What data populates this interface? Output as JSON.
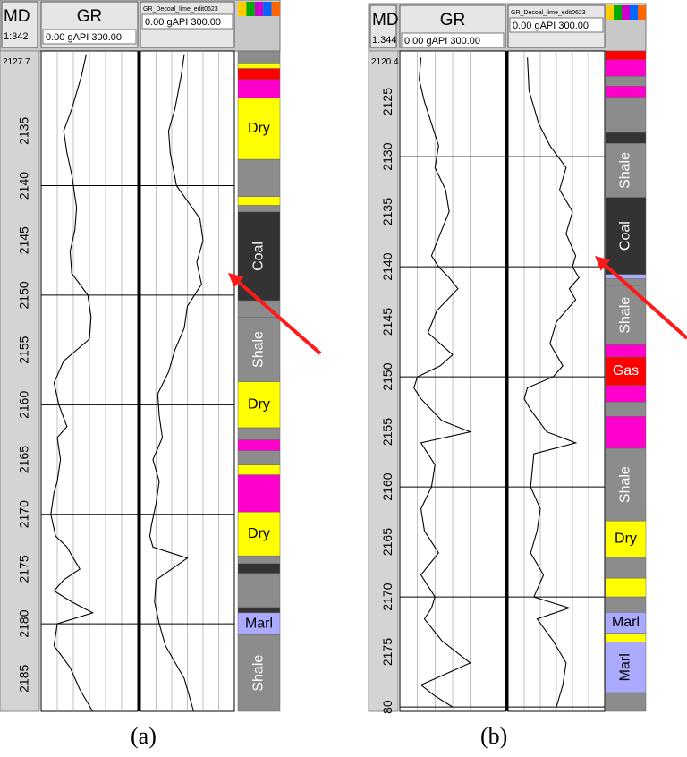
{
  "panels": [
    {
      "caption": "(a)",
      "header": {
        "md_title": "MD",
        "md_scale": "1:342",
        "gr_title": "GR",
        "gr_scale": "0.00 gAPI 300.00",
        "gr2_title": "GR_Decoal_lime_edit0623",
        "gr2_scale": "0.00 gAPI 300.00",
        "lith_icon": "lithology-column-icon"
      },
      "depth_top_label": "2127.7",
      "depth_ticks": [
        "2135",
        "2140",
        "2145",
        "2150",
        "2155",
        "2160",
        "2165",
        "2170",
        "2175",
        "2180",
        "2185"
      ],
      "lith_labels": [
        "Dry",
        "Coal",
        "Shale",
        "Dry",
        "Dry",
        "Marl",
        "Shale"
      ],
      "arrow": "red arrow pointing at coal interval",
      "colors": {
        "shale": "#8c8c8c",
        "coal": "#333333",
        "dry": "#ffff00",
        "marl": "#aaaaff",
        "lime": "#ff00cc",
        "gas": "#ff0000"
      }
    },
    {
      "caption": "(b)",
      "header": {
        "md_title": "MD",
        "md_scale": "1:344",
        "gr_title": "GR",
        "gr_scale": "0.00 gAPI 300.00",
        "gr2_title": "GR_Decoal_lime_edit0623",
        "gr2_scale": "0.00 gAPI 300.00",
        "lith_icon": "lithology-column-icon"
      },
      "depth_top_label": "2120.4",
      "depth_ticks": [
        "2125",
        "2130",
        "2135",
        "2140",
        "2145",
        "2150",
        "2155",
        "2160",
        "2165",
        "2170",
        "2175",
        "80"
      ],
      "lith_labels": [
        "Shale",
        "Coal",
        "Shale",
        "Gas",
        "Shale",
        "Dry",
        "Marl",
        "Marl"
      ],
      "arrow": "red arrow pointing at coal interval"
    }
  ],
  "chart_data": [
    {
      "type": "line",
      "panel": "a",
      "depth_range": [
        2127.7,
        2188
      ],
      "x_range": [
        0,
        300
      ],
      "x_unit": "gAPI",
      "lithology_intervals": [
        {
          "top": 2127.7,
          "base": 2128.8,
          "lith": "shale"
        },
        {
          "top": 2128.8,
          "base": 2129.3,
          "lith": "dry"
        },
        {
          "top": 2129.3,
          "base": 2130.3,
          "lith": "gas"
        },
        {
          "top": 2130.3,
          "base": 2132.0,
          "lith": "lime"
        },
        {
          "top": 2132.0,
          "base": 2137.6,
          "lith": "dry",
          "label": "Dry"
        },
        {
          "top": 2137.6,
          "base": 2141.0,
          "lith": "shale"
        },
        {
          "top": 2141.0,
          "base": 2141.8,
          "lith": "dry"
        },
        {
          "top": 2141.8,
          "base": 2142.4,
          "lith": "shale"
        },
        {
          "top": 2142.4,
          "base": 2150.5,
          "lith": "coal",
          "label": "Coal"
        },
        {
          "top": 2150.5,
          "base": 2152.0,
          "lith": "shale"
        },
        {
          "top": 2152.0,
          "base": 2157.9,
          "lith": "shale",
          "label": "Shale"
        },
        {
          "top": 2157.9,
          "base": 2162.1,
          "lith": "dry",
          "label": "Dry"
        },
        {
          "top": 2162.1,
          "base": 2163.2,
          "lith": "shale"
        },
        {
          "top": 2163.2,
          "base": 2164.2,
          "lith": "lime"
        },
        {
          "top": 2164.2,
          "base": 2165.5,
          "lith": "shale"
        },
        {
          "top": 2165.5,
          "base": 2166.4,
          "lith": "dry"
        },
        {
          "top": 2166.4,
          "base": 2169.8,
          "lith": "lime"
        },
        {
          "top": 2169.8,
          "base": 2173.8,
          "lith": "dry",
          "label": "Dry"
        },
        {
          "top": 2173.8,
          "base": 2174.5,
          "lith": "shale"
        },
        {
          "top": 2174.5,
          "base": 2175.4,
          "lith": "coal"
        },
        {
          "top": 2175.4,
          "base": 2178.5,
          "lith": "shale"
        },
        {
          "top": 2178.5,
          "base": 2179.0,
          "lith": "coal"
        },
        {
          "top": 2179.0,
          "base": 2181.0,
          "lith": "marl",
          "label": "Marl"
        },
        {
          "top": 2181.0,
          "base": 2188.0,
          "lith": "shale",
          "label": "Shale"
        }
      ],
      "series": [
        {
          "x": [
            140,
            125,
            95,
            70,
            80,
            95,
            110,
            105,
            90,
            95,
            145,
            155,
            150,
            70,
            40,
            55,
            80,
            50,
            60,
            50,
            40,
            30,
            45,
            80,
            100,
            120,
            70,
            40,
            95,
            160,
            50,
            40,
            90,
            120,
            160
          ],
          "depth": [
            2128,
            2130,
            2133,
            2135,
            2137,
            2139,
            2142,
            2144,
            2146,
            2148,
            2150,
            2152,
            2154,
            2156,
            2158,
            2160,
            2162,
            2163,
            2165,
            2167,
            2168,
            2170,
            2172,
            2173,
            2174,
            2175,
            2176,
            2177,
            2178,
            2179,
            2180,
            2182,
            2184,
            2186,
            2188
          ]
        },
        {
          "x": [
            140,
            130,
            110,
            90,
            95,
            115,
            190,
            200,
            180,
            195,
            150,
            140,
            110,
            90,
            55,
            60,
            70,
            40,
            60,
            50,
            35,
            30,
            40,
            150,
            50,
            45,
            60,
            80,
            140,
            170
          ],
          "depth": [
            2128,
            2130,
            2133,
            2135,
            2137,
            2140,
            2143,
            2145,
            2147,
            2149,
            2151,
            2153,
            2155,
            2157,
            2159,
            2161,
            2163,
            2165,
            2167,
            2169,
            2171,
            2172,
            2173,
            2174,
            2176,
            2178,
            2180,
            2182,
            2185,
            2188
          ]
        }
      ]
    },
    {
      "type": "line",
      "panel": "b",
      "depth_range": [
        2120.4,
        2180.4
      ],
      "x_range": [
        0,
        300
      ],
      "x_unit": "gAPI",
      "lithology_intervals": [
        {
          "top": 2120.4,
          "base": 2121.2,
          "lith": "gas"
        },
        {
          "top": 2121.2,
          "base": 2122.7,
          "lith": "lime"
        },
        {
          "top": 2122.7,
          "base": 2123.6,
          "lith": "shale"
        },
        {
          "top": 2123.6,
          "base": 2124.6,
          "lith": "lime"
        },
        {
          "top": 2124.6,
          "base": 2127.8,
          "lith": "shale"
        },
        {
          "top": 2127.8,
          "base": 2128.8,
          "lith": "coal"
        },
        {
          "top": 2128.8,
          "base": 2133.7,
          "lith": "shale",
          "label": "Shale"
        },
        {
          "top": 2133.7,
          "base": 2140.7,
          "lith": "coal",
          "label": "Coal"
        },
        {
          "top": 2140.7,
          "base": 2141.1,
          "lith": "marl"
        },
        {
          "top": 2141.1,
          "base": 2141.7,
          "lith": "shale"
        },
        {
          "top": 2141.7,
          "base": 2147.1,
          "lith": "shale",
          "label": "Shale"
        },
        {
          "top": 2147.1,
          "base": 2148.2,
          "lith": "lime"
        },
        {
          "top": 2148.2,
          "base": 2150.8,
          "lith": "gas",
          "label": "Gas"
        },
        {
          "top": 2150.8,
          "base": 2152.3,
          "lith": "lime"
        },
        {
          "top": 2152.3,
          "base": 2153.6,
          "lith": "shale"
        },
        {
          "top": 2153.6,
          "base": 2156.5,
          "lith": "lime"
        },
        {
          "top": 2156.5,
          "base": 2163.1,
          "lith": "shale",
          "label": "Shale"
        },
        {
          "top": 2163.1,
          "base": 2166.4,
          "lith": "dry",
          "label": "Dry"
        },
        {
          "top": 2166.4,
          "base": 2168.3,
          "lith": "shale"
        },
        {
          "top": 2168.3,
          "base": 2170.0,
          "lith": "dry"
        },
        {
          "top": 2170.0,
          "base": 2171.4,
          "lith": "shale"
        },
        {
          "top": 2171.4,
          "base": 2173.3,
          "lith": "marl",
          "label": "Marl"
        },
        {
          "top": 2173.3,
          "base": 2174.1,
          "lith": "dry"
        },
        {
          "top": 2174.1,
          "base": 2178.7,
          "lith": "marl",
          "label": "Marl"
        },
        {
          "top": 2178.7,
          "base": 2180.4,
          "lith": "shale"
        }
      ],
      "series": [
        {
          "x": [
            60,
            55,
            70,
            90,
            110,
            100,
            130,
            140,
            115,
            90,
            110,
            140,
            165,
            105,
            80,
            150,
            115,
            50,
            40,
            60,
            90,
            120,
            200,
            60,
            100,
            90,
            60,
            70,
            110,
            60,
            100,
            90,
            70,
            120,
            200,
            60,
            100,
            150
          ],
          "depth": [
            2121,
            2123,
            2125,
            2127,
            2129,
            2131,
            2133,
            2135,
            2137,
            2139,
            2140,
            2141,
            2142,
            2144,
            2146,
            2148,
            2149,
            2150,
            2151,
            2152,
            2153,
            2154,
            2155,
            2156,
            2158,
            2160,
            2162,
            2164,
            2166,
            2168,
            2170,
            2171,
            2172,
            2174,
            2176,
            2178,
            2179,
            2180
          ]
        },
        {
          "x": [
            60,
            65,
            95,
            130,
            180,
            160,
            200,
            180,
            210,
            200,
            220,
            190,
            210,
            150,
            130,
            170,
            140,
            60,
            50,
            70,
            120,
            210,
            80,
            70,
            100,
            90,
            70,
            110,
            80,
            190,
            90,
            140,
            180,
            170,
            150
          ],
          "depth": [
            2121,
            2124,
            2127,
            2129,
            2131,
            2133,
            2135,
            2137,
            2139,
            2140,
            2141,
            2142,
            2143,
            2145,
            2147,
            2149,
            2150,
            2151,
            2152,
            2153,
            2155,
            2156,
            2157,
            2160,
            2162,
            2164,
            2166,
            2168,
            2170,
            2171,
            2172,
            2174,
            2176,
            2178,
            2180
          ]
        }
      ]
    }
  ]
}
